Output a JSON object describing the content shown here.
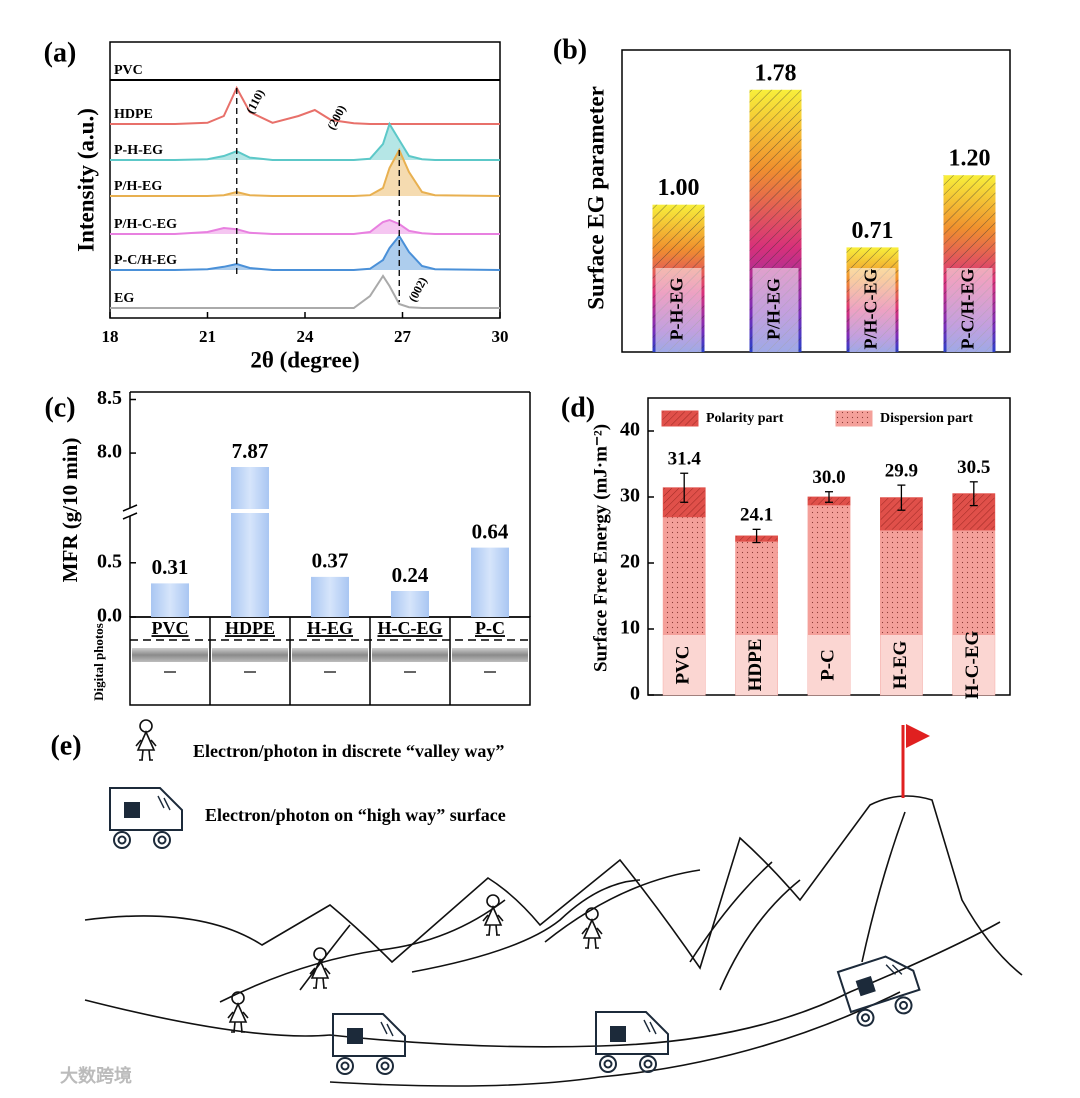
{
  "chart_data": [
    {
      "type": "line",
      "panel_label": "(a)",
      "xlabel": "2θ (degree)",
      "ylabel": "Intensity (a.u.)",
      "xlim": [
        18,
        30
      ],
      "xticks": [
        18,
        21,
        24,
        27,
        30
      ],
      "x": [
        18,
        20,
        21,
        21.5,
        21.9,
        22.3,
        23,
        23.8,
        24.3,
        24.8,
        25.5,
        26,
        26.4,
        26.6,
        26.9,
        27.2,
        27.6,
        28,
        30
      ],
      "series": [
        {
          "name": "PVC",
          "color": "#000000",
          "fill": false,
          "values": [
            0,
            0,
            0,
            0,
            0,
            0,
            0,
            0,
            0,
            0,
            0,
            0,
            0,
            0,
            0,
            0,
            0,
            0,
            0
          ]
        },
        {
          "name": "HDPE",
          "color": "#e8706a",
          "fill": false,
          "values": [
            0,
            0,
            0.03,
            0.2,
            0.9,
            0.3,
            0.03,
            0.2,
            0.35,
            0.1,
            0.02,
            0,
            0,
            0,
            0,
            0,
            0,
            0,
            0
          ]
        },
        {
          "name": "P-H-EG",
          "color": "#5cc8c8",
          "fill": true,
          "values": [
            0,
            0,
            0.02,
            0.1,
            0.22,
            0.06,
            0,
            0,
            0,
            0,
            0,
            0.03,
            0.4,
            0.9,
            0.5,
            0.1,
            0.02,
            0,
            0
          ]
        },
        {
          "name": "P/H-EG",
          "color": "#e8b050",
          "fill": true,
          "values": [
            0,
            0,
            0,
            0.02,
            0.1,
            0.02,
            0,
            0,
            0,
            0,
            0,
            0.02,
            0.2,
            0.7,
            1.15,
            0.6,
            0.1,
            0.02,
            0
          ]
        },
        {
          "name": "P/H-C-EG",
          "color": "#e880e0",
          "fill": true,
          "values": [
            0,
            0,
            0.05,
            0.15,
            0.12,
            0.03,
            0,
            0,
            0,
            0,
            0,
            0.05,
            0.3,
            0.35,
            0.25,
            0.08,
            0.02,
            0,
            0
          ]
        },
        {
          "name": "P-C/H-EG",
          "color": "#4a90d8",
          "fill": true,
          "values": [
            0,
            0,
            0.02,
            0.08,
            0.15,
            0.05,
            0,
            0,
            0,
            0,
            0,
            0.03,
            0.25,
            0.55,
            0.85,
            0.45,
            0.1,
            0.02,
            0
          ]
        },
        {
          "name": "EG",
          "color": "#aaaaaa",
          "fill": false,
          "values": [
            0,
            0,
            0,
            0,
            0,
            0,
            0,
            0,
            0,
            0,
            0,
            0.3,
            0.8,
            0.55,
            0.1,
            0.02,
            0,
            0,
            0
          ]
        }
      ],
      "ref_lines_x": [
        21.9,
        26.9
      ],
      "annotations": [
        {
          "text": "(110)",
          "x": 22.5
        },
        {
          "text": "(200)",
          "x": 25.0
        },
        {
          "text": "(002)",
          "x": 27.5
        }
      ]
    },
    {
      "type": "bar",
      "panel_label": "(b)",
      "ylabel": "Surface EG parameter",
      "categories": [
        "P-H-EG",
        "P/H-EG",
        "P/H-C-EG",
        "P-C/H-EG"
      ],
      "values": [
        1.0,
        1.78,
        0.71,
        1.2
      ],
      "value_labels": [
        "1.00",
        "1.78",
        "0.71",
        "1.20"
      ],
      "ylim": [
        0,
        2.05
      ]
    },
    {
      "type": "broken_bar",
      "panel_label": "(c)",
      "ylabel": "MFR (g/10 min)",
      "photo_label": "Digital photos",
      "categories": [
        "PVC",
        "HDPE",
        "H-EG",
        "H-C-EG",
        "P-C"
      ],
      "values": [
        0.31,
        7.87,
        0.37,
        0.24,
        0.64
      ],
      "ylim": [
        0,
        8.57
      ],
      "ybreak": [
        0.95,
        7.45
      ],
      "yticks": [
        {
          "value": 0,
          "label": "0.0"
        },
        0.5,
        {
          "value": 8,
          "label": "8.0"
        },
        8.5
      ]
    },
    {
      "type": "stacked_bar",
      "panel_label": "(d)",
      "ylabel": "Surface Free Energy (mJ·m⁻²)",
      "categories": [
        "PVC",
        "HDPE",
        "P-C",
        "H-EG",
        "H-C-EG"
      ],
      "series": [
        {
          "name": "Dispersion part",
          "color": "#f4a09a",
          "values": [
            27.0,
            23.3,
            28.8,
            25.0,
            25.0
          ]
        },
        {
          "name": "Polarity part",
          "color": "#e0504a",
          "values": [
            4.4,
            0.8,
            1.2,
            4.9,
            5.5
          ]
        }
      ],
      "totals": [
        31.4,
        24.1,
        30.0,
        29.9,
        30.5
      ],
      "total_labels": [
        "31.4",
        "24.1",
        "30.0",
        "29.9",
        "30.5"
      ],
      "errors": [
        2.2,
        1.0,
        0.8,
        1.9,
        1.8
      ],
      "ylim": [
        0,
        45
      ],
      "yticks": [
        0,
        10,
        20,
        30,
        40
      ]
    }
  ],
  "diagram": {
    "panel_label": "(e)",
    "legend": [
      "Electron/photon in discrete “valley way”",
      "Electron/photon on “high way” surface"
    ],
    "watermark": "大数跨境"
  }
}
